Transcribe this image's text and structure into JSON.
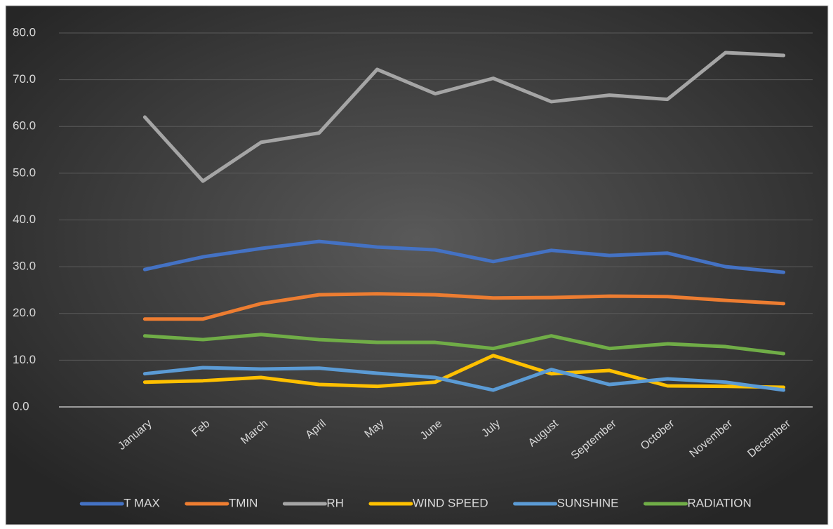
{
  "chart_data": {
    "type": "line",
    "categories": [
      "January",
      "Feb",
      "March",
      "April",
      "May",
      "June",
      "July",
      "August",
      "September",
      "October",
      "November",
      "December"
    ],
    "series": [
      {
        "name": "T MAX",
        "color": "#4472c4",
        "values": [
          29.4,
          32.1,
          33.9,
          35.4,
          34.2,
          33.6,
          31.1,
          33.5,
          32.4,
          32.9,
          30.0,
          28.8
        ]
      },
      {
        "name": "TMIN",
        "color": "#ed7d31",
        "values": [
          18.8,
          18.8,
          22.1,
          24.0,
          24.2,
          24.0,
          23.3,
          23.4,
          23.7,
          23.6,
          22.8,
          22.1
        ]
      },
      {
        "name": "RH",
        "color": "#a5a5a5",
        "values": [
          62.0,
          48.3,
          56.6,
          58.6,
          72.2,
          67.0,
          70.3,
          65.3,
          66.7,
          65.8,
          75.8,
          75.2
        ]
      },
      {
        "name": "WIND SPEED",
        "color": "#ffc000",
        "values": [
          5.3,
          5.6,
          6.3,
          4.8,
          4.4,
          5.3,
          11.0,
          7.1,
          7.8,
          4.5,
          4.4,
          4.2
        ]
      },
      {
        "name": "SUNSHINE",
        "color": "#5b9bd5",
        "values": [
          7.1,
          8.4,
          8.1,
          8.3,
          7.2,
          6.3,
          3.6,
          8.0,
          4.8,
          6.0,
          5.3,
          3.6
        ]
      },
      {
        "name": "RADIATION",
        "color": "#70ad47",
        "values": [
          15.2,
          14.4,
          15.5,
          14.4,
          13.8,
          13.8,
          12.5,
          15.2,
          12.5,
          13.5,
          12.9,
          11.4
        ]
      }
    ],
    "ylim": [
      0,
      80
    ],
    "yticks": [
      {
        "value": 0,
        "label": "0.0"
      },
      {
        "value": 10,
        "label": "10.0"
      },
      {
        "value": 20,
        "label": "20.0"
      },
      {
        "value": 30,
        "label": "30.0"
      },
      {
        "value": 40,
        "label": "40.0"
      },
      {
        "value": 50,
        "label": "50.0"
      },
      {
        "value": 60,
        "label": "60.0"
      },
      {
        "value": 70,
        "label": "70.0"
      },
      {
        "value": 80,
        "label": "80.0"
      }
    ],
    "grid": true,
    "legend": "bottom"
  }
}
